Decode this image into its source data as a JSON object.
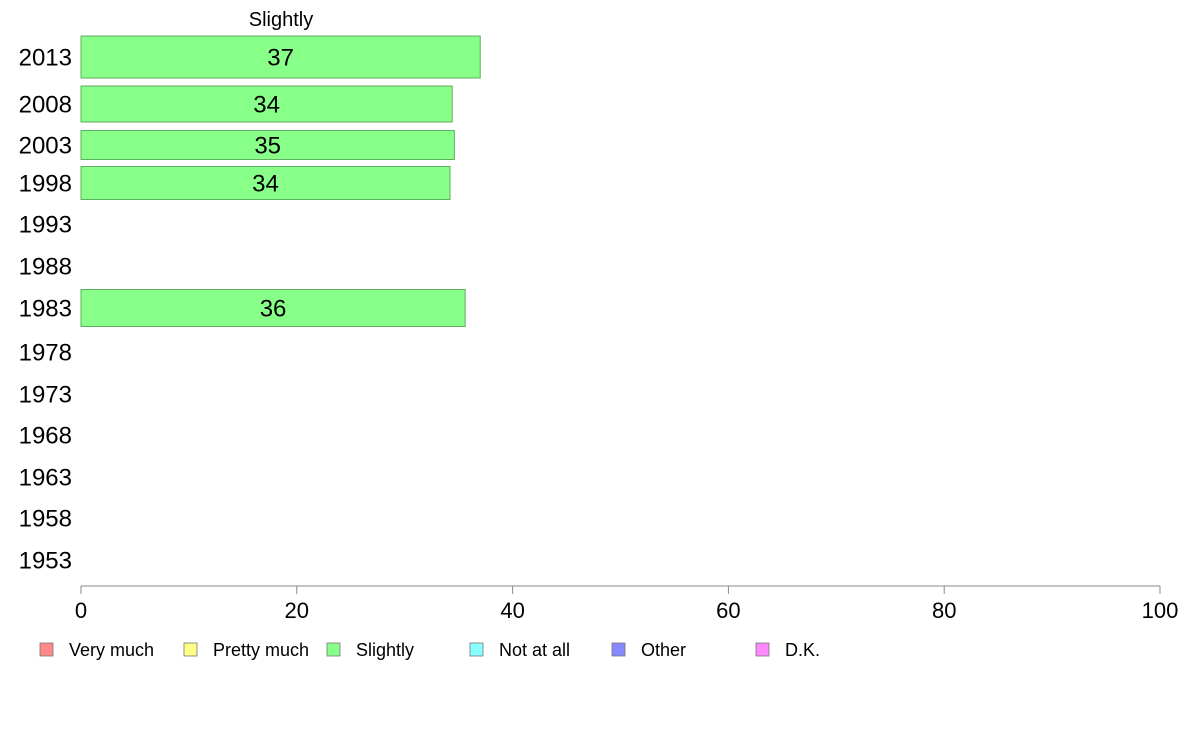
{
  "chart_data": {
    "type": "bar",
    "orientation": "horizontal",
    "title": "Slightly",
    "categories": [
      "2013",
      "2008",
      "2003",
      "1998",
      "1993",
      "1988",
      "1983",
      "1978",
      "1973",
      "1968",
      "1963",
      "1958",
      "1953"
    ],
    "series": [
      {
        "name": "Slightly",
        "color": "#88ff88",
        "values": [
          37,
          34.4,
          34.6,
          34.2,
          null,
          null,
          35.6,
          null,
          null,
          null,
          null,
          null,
          null
        ],
        "labels": [
          "37",
          "34",
          "35",
          "34",
          "",
          "",
          "36",
          "",
          "",
          "",
          "",
          "",
          ""
        ]
      }
    ],
    "xlim": [
      0,
      100
    ],
    "xticks": [
      "0",
      "20",
      "40",
      "60",
      "80",
      "100"
    ],
    "grid": false,
    "legend": {
      "placement": "bottom",
      "entries": [
        {
          "label": "Very much",
          "color": "#ff8888"
        },
        {
          "label": "Pretty much",
          "color": "#ffff88"
        },
        {
          "label": "Slightly",
          "color": "#88ff88"
        },
        {
          "label": "Not at all",
          "color": "#88ffff"
        },
        {
          "label": "Other",
          "color": "#8888ff"
        },
        {
          "label": "D.K.",
          "color": "#ff88ff"
        }
      ]
    }
  }
}
